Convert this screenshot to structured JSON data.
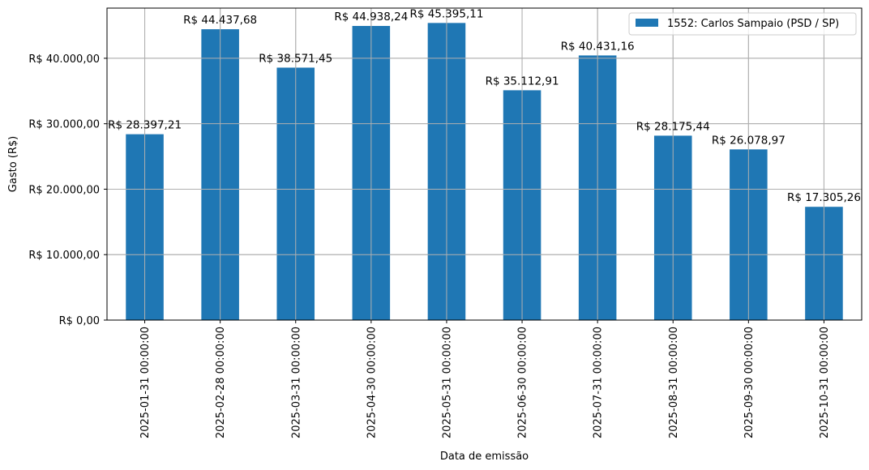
{
  "chart_data": {
    "type": "bar",
    "categories": [
      "2025-01-31 00:00:00",
      "2025-02-28 00:00:00",
      "2025-03-31 00:00:00",
      "2025-04-30 00:00:00",
      "2025-05-31 00:00:00",
      "2025-06-30 00:00:00",
      "2025-07-31 00:00:00",
      "2025-08-31 00:00:00",
      "2025-09-30 00:00:00",
      "2025-10-31 00:00:00"
    ],
    "series": [
      {
        "name": "1552: Carlos Sampaio (PSD / SP)",
        "color": "#1f77b4",
        "values": [
          28397.21,
          44437.68,
          38571.45,
          44938.24,
          45395.11,
          35112.91,
          40431.16,
          28175.44,
          26078.97,
          17305.26
        ],
        "data_labels": [
          "R$ 28.397,21",
          "R$ 44.437,68",
          "R$ 38.571,45",
          "R$ 44.938,24",
          "R$ 45.395,11",
          "R$ 35.112,91",
          "R$ 40.431,16",
          "R$ 28.175,44",
          "R$ 26.078,97",
          "R$ 17.305,26"
        ]
      }
    ],
    "xlabel": "Data de emissão",
    "ylabel": "Gasto (R$)",
    "ylim": [
      0,
      47665
    ],
    "y_ticks": [
      0,
      10000,
      20000,
      30000,
      40000
    ],
    "y_tick_labels": [
      "R$ 0,00",
      "R$ 10.000,00",
      "R$ 20.000,00",
      "R$ 30.000,00",
      "R$ 40.000,00"
    ],
    "grid": true,
    "legend_position": "top-right"
  }
}
